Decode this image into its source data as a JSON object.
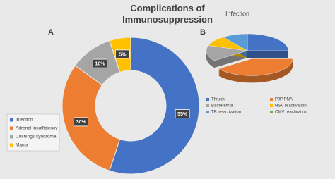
{
  "chart_data": [
    {
      "type": "donut",
      "title": "Complications of Immunosuppression",
      "label": "A",
      "categories": [
        "Infection",
        "Adrenal insufficiency",
        "Cushings syndrome",
        "Mania"
      ],
      "values": [
        55,
        30,
        10,
        5
      ],
      "value_labels": [
        "55%",
        "30%",
        "10%",
        "5%"
      ],
      "colors": [
        "#4472c4",
        "#ed7d31",
        "#a5a5a5",
        "#ffc000"
      ],
      "legend": "bottom-left"
    },
    {
      "type": "pie3d",
      "title": "Infection",
      "label": "B",
      "categories": [
        "Thrush",
        "PJP PNA",
        "Bacteremia",
        "HSV reactivation",
        "TB re-activation",
        "CMV reactivation"
      ],
      "values": [
        25,
        40,
        15,
        10,
        10,
        0
      ],
      "colors": [
        "#4472c4",
        "#ed7d31",
        "#a5a5a5",
        "#ffc000",
        "#5b9bd5",
        "#70ad47"
      ],
      "exploded_slice": "PJP PNA",
      "legend": "bottom"
    }
  ]
}
